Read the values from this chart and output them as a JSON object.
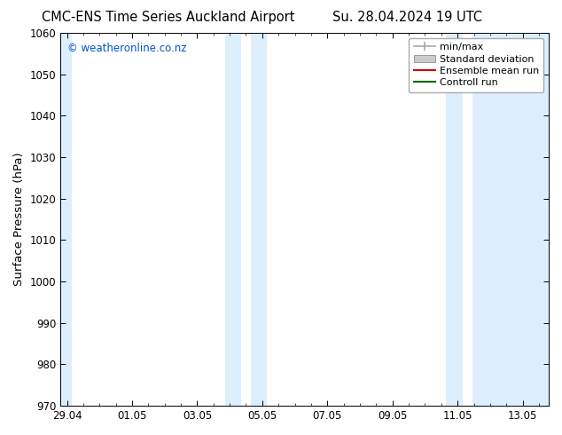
{
  "title_left": "CMC-ENS Time Series Auckland Airport",
  "title_right": "Su. 28.04.2024 19 UTC",
  "ylabel": "Surface Pressure (hPa)",
  "ylim": [
    970,
    1060
  ],
  "yticks": [
    970,
    980,
    990,
    1000,
    1010,
    1020,
    1030,
    1040,
    1050,
    1060
  ],
  "xticks_labels": [
    "29.04",
    "01.05",
    "03.05",
    "05.05",
    "07.05",
    "09.05",
    "11.05",
    "13.05"
  ],
  "xticks_pos": [
    0,
    2,
    4,
    6,
    8,
    10,
    12,
    14
  ],
  "xlim": [
    -0.2,
    14.8
  ],
  "watermark": "© weatheronline.co.nz",
  "watermark_color": "#0055cc",
  "shaded_regions": [
    {
      "x_start": -0.2,
      "x_end": 0.15
    },
    {
      "x_start": 4.85,
      "x_end": 5.35
    },
    {
      "x_start": 5.65,
      "x_end": 6.15
    },
    {
      "x_start": 11.65,
      "x_end": 12.15
    },
    {
      "x_start": 12.45,
      "x_end": 14.8
    }
  ],
  "shade_color": "#ddeeff",
  "background_color": "#ffffff",
  "legend_items": [
    {
      "label": "min/max",
      "color": "#aaaaaa",
      "type": "line_with_cap"
    },
    {
      "label": "Standard deviation",
      "color": "#cccccc",
      "type": "band"
    },
    {
      "label": "Ensemble mean run",
      "color": "#cc0000",
      "type": "line"
    },
    {
      "label": "Controll run",
      "color": "#006600",
      "type": "line"
    }
  ],
  "title_fontsize": 10.5,
  "tick_fontsize": 8.5,
  "legend_fontsize": 8,
  "ylabel_fontsize": 9.5
}
